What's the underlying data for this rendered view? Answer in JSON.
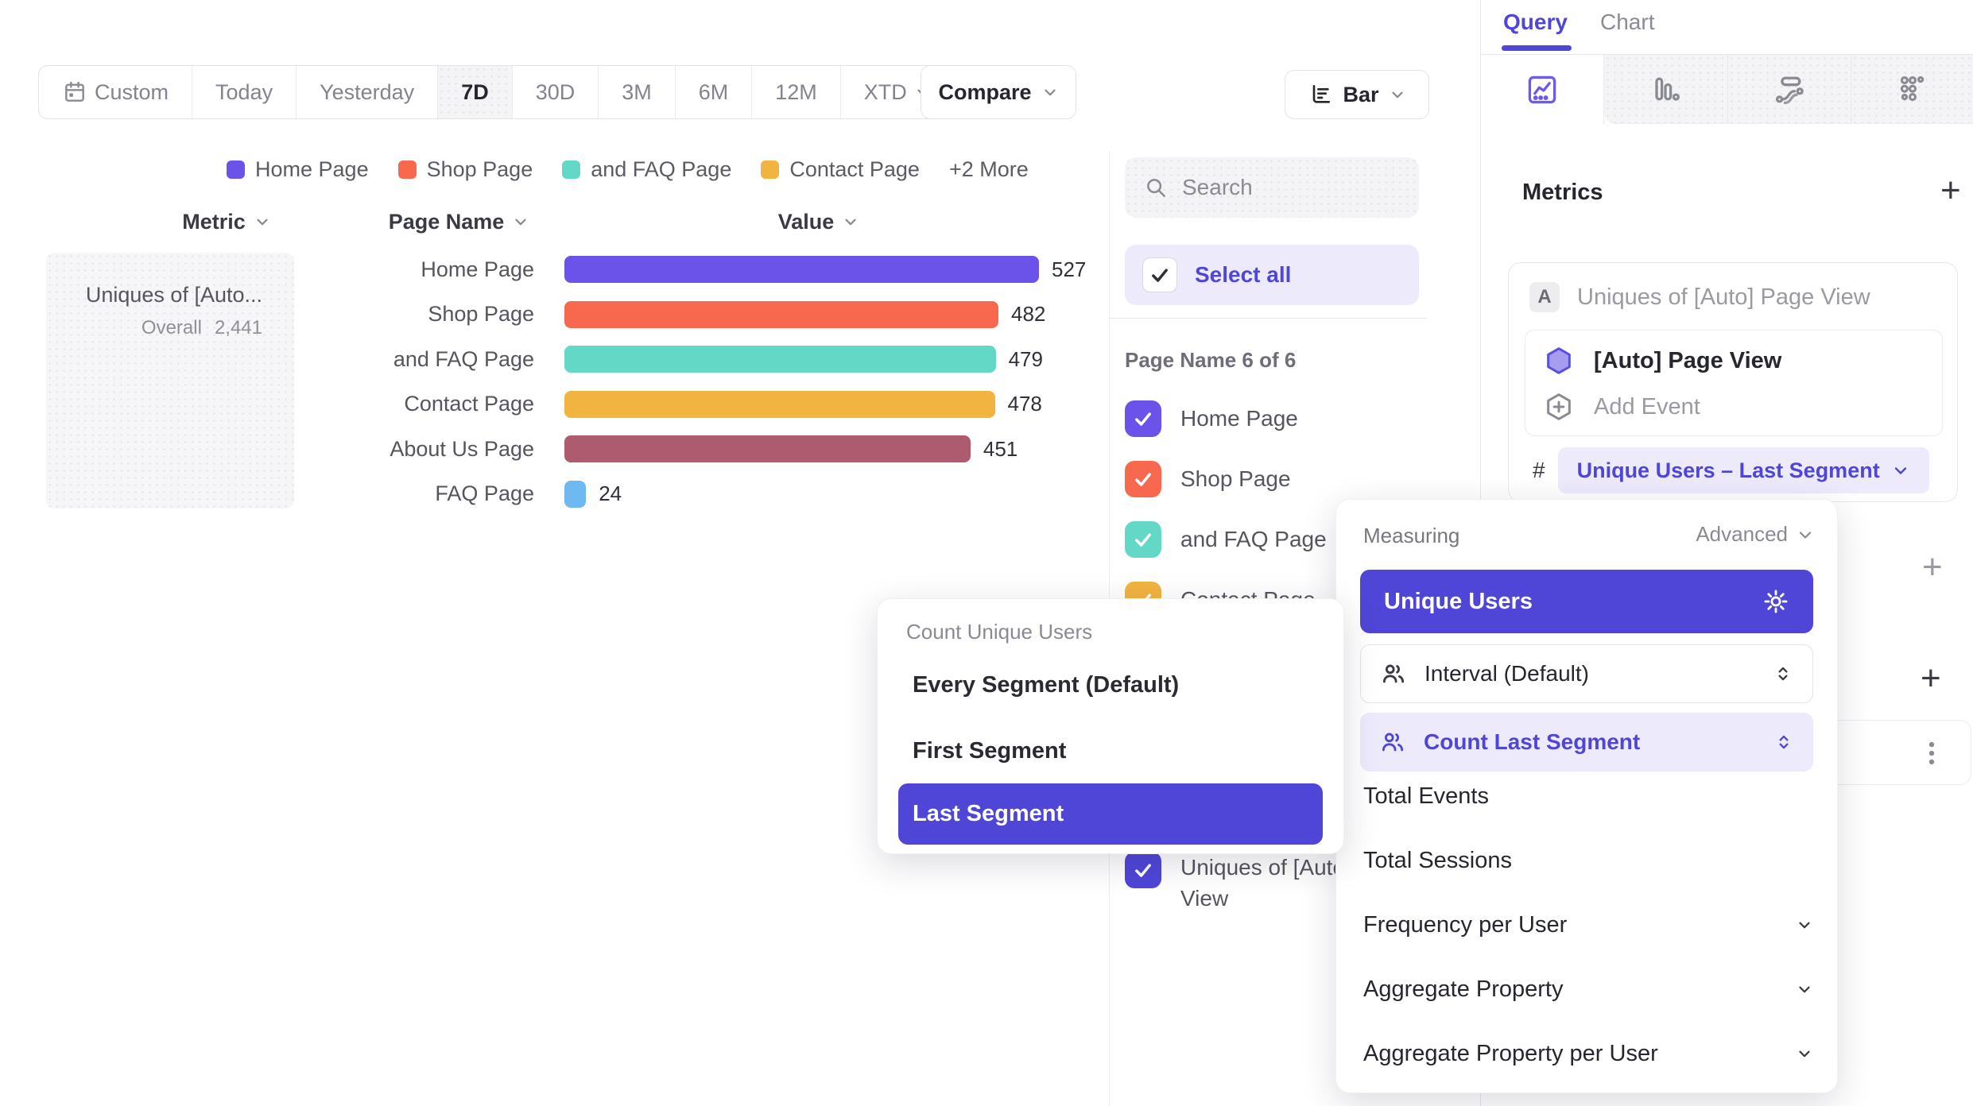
{
  "ui": {
    "plus": "+"
  },
  "toolbar": {
    "date_ranges": [
      "Custom",
      "Today",
      "Yesterday",
      "7D",
      "30D",
      "3M",
      "6M",
      "12M",
      "XTD"
    ],
    "active_range": "7D",
    "compare_label": "Compare",
    "chart_type_label": "Bar"
  },
  "legend": {
    "items": [
      {
        "label": "Home Page",
        "color": "#6B52E8"
      },
      {
        "label": "Shop Page",
        "color": "#F7684E"
      },
      {
        "label": "and FAQ Page",
        "color": "#63D8C7"
      },
      {
        "label": "Contact Page",
        "color": "#F2B440"
      }
    ],
    "more_label": "+2 More"
  },
  "chart_data": {
    "type": "bar",
    "orientation": "horizontal",
    "columns": [
      "Metric",
      "Page Name",
      "Value"
    ],
    "metric": {
      "name": "Uniques of [Auto...",
      "overall_label": "Overall",
      "overall_value": "2,441"
    },
    "categories": [
      "Home Page",
      "Shop Page",
      "and FAQ Page",
      "Contact Page",
      "About Us Page",
      "FAQ Page"
    ],
    "values": [
      527,
      482,
      479,
      478,
      451,
      24
    ],
    "colors": [
      "#6B52E8",
      "#F7684E",
      "#63D8C7",
      "#F2B440",
      "#AE5A6F",
      "#6FB9F2"
    ],
    "xlim": [
      0,
      560
    ],
    "legend_position": "top"
  },
  "filter_panel": {
    "search_placeholder": "Search",
    "select_all_label": "Select all",
    "group_label": "Page Name 6 of 6",
    "items": [
      {
        "label": "Home Page",
        "color": "#6B52E8",
        "checked": true
      },
      {
        "label": "Shop Page",
        "color": "#F7684E",
        "checked": true
      },
      {
        "label": "and FAQ Page",
        "color": "#63D8C7",
        "checked": true
      },
      {
        "label": "Contact Page",
        "color": "#F2B440",
        "checked": true
      },
      {
        "label": "About Us Page",
        "color": "#AE5A6F",
        "checked": true
      },
      {
        "label": "FAQ Page",
        "color": "#6FB9F2",
        "checked": true
      }
    ],
    "series_item": {
      "label": "Uniques of [Auto] Page View",
      "color": "#4F46D7",
      "checked": true
    }
  },
  "query_panel": {
    "tabs": [
      "Query",
      "Chart"
    ],
    "active_tab": "Query",
    "chart_type_tabs": [
      "insights-line",
      "bars",
      "flows",
      "retention"
    ],
    "metrics_title": "Metrics",
    "metric_badge": "A",
    "metric_label": "Uniques of [Auto] Page View",
    "event_label": "[Auto] Page View",
    "add_event_label": "Add Event",
    "hash_symbol": "#",
    "aggregation_label": "Unique Users – Last Segment"
  },
  "measuring_menu": {
    "title": "Measuring",
    "advanced_label": "Advanced",
    "selected_label": "Unique Users",
    "interval_label": "Interval (Default)",
    "count_segment_label": "Count Last Segment",
    "options": [
      {
        "label": "Total Events",
        "expandable": false
      },
      {
        "label": "Total Sessions",
        "expandable": false
      },
      {
        "label": "Frequency per User",
        "expandable": true
      },
      {
        "label": "Aggregate Property",
        "expandable": true
      },
      {
        "label": "Aggregate Property per User",
        "expandable": true
      }
    ]
  },
  "segment_menu": {
    "title": "Count Unique Users",
    "options": [
      "Every Segment (Default)",
      "First Segment",
      "Last Segment"
    ],
    "selected": "Last Segment"
  },
  "colors": {
    "accent": "#4F46D7",
    "accent_light_bg": "#ECEAFB",
    "text_dark": "#26262E",
    "text_gray": "#8A8A93",
    "border": "#E8E8EB"
  }
}
